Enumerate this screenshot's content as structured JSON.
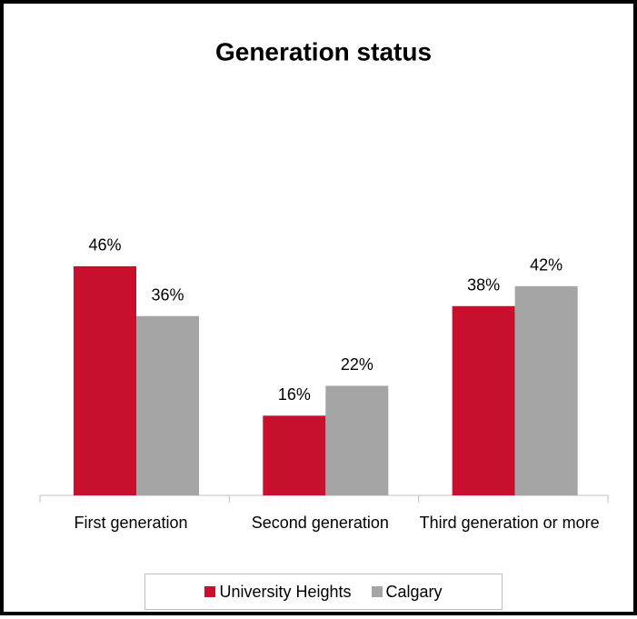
{
  "chart_data": {
    "type": "bar",
    "title": "Generation status",
    "categories": [
      "First generation",
      "Second generation",
      "Third generation or more"
    ],
    "series": [
      {
        "name": "University Heights",
        "color": "#c8102e",
        "values": [
          46,
          16,
          38
        ],
        "value_labels": [
          "46%",
          "16%",
          "38%"
        ]
      },
      {
        "name": "Calgary",
        "color": "#a5a5a5",
        "values": [
          36,
          22,
          42
        ],
        "value_labels": [
          "36%",
          "22%",
          "42%"
        ]
      }
    ],
    "legend": "bottom"
  }
}
